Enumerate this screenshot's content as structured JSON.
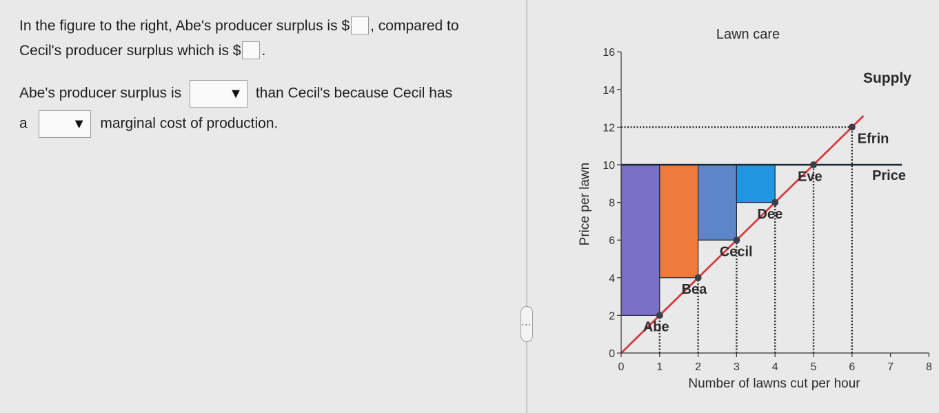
{
  "question": {
    "line1_a": "In the figure to the right, Abe's producer surplus is $",
    "line1_b": ", compared to",
    "line2_a": "Cecil's producer surplus which is $",
    "line2_b": ".",
    "line3_a": "Abe's producer surplus is",
    "line3_b": "than Cecil's because  Cecil has",
    "line4_a": "a",
    "line4_b": "marginal cost of production.",
    "dropdown_arrow": "▼",
    "drag_handle": "⋮"
  },
  "chart_data": {
    "type": "bar",
    "title": "Lawn care",
    "xlabel": "Number of lawns cut per hour",
    "ylabel": "Price per lawn",
    "xlim": [
      0,
      8
    ],
    "ylim": [
      0,
      16
    ],
    "xticks": [
      "0",
      "1",
      "2",
      "3",
      "4",
      "5",
      "6",
      "7",
      "8"
    ],
    "yticks": [
      "0",
      "2",
      "4",
      "6",
      "8",
      "10",
      "12",
      "14",
      "16"
    ],
    "price": 10,
    "price_label": "Price",
    "supply_label": "Supply",
    "supply_line": [
      [
        0,
        0
      ],
      [
        6.3,
        12.6
      ]
    ],
    "marked_price": 12,
    "bars": [
      {
        "name": "Abe",
        "x0": 0,
        "x1": 1,
        "cost": 2,
        "color": "#7b6fc8"
      },
      {
        "name": "Bea",
        "x0": 1,
        "x1": 2,
        "cost": 4,
        "color": "#f07a3c"
      },
      {
        "name": "Cecil",
        "x0": 2,
        "x1": 3,
        "cost": 6,
        "color": "#5d86c8"
      },
      {
        "name": "Dee",
        "x0": 3,
        "x1": 4,
        "cost": 8,
        "color": "#1f96df"
      }
    ],
    "sellers": [
      {
        "name": "Abe",
        "x": 1,
        "cost": 2
      },
      {
        "name": "Bea",
        "x": 2,
        "cost": 4
      },
      {
        "name": "Cecil",
        "x": 3,
        "cost": 6
      },
      {
        "name": "Dee",
        "x": 4,
        "cost": 8
      },
      {
        "name": "Eve",
        "x": 5,
        "cost": 10
      },
      {
        "name": "Efrin",
        "x": 6,
        "cost": 12
      }
    ],
    "colors": {
      "supply": "#d8393f",
      "price": "#1c2a3a",
      "grid_dots": "#222222",
      "point": "#3a4048"
    }
  }
}
